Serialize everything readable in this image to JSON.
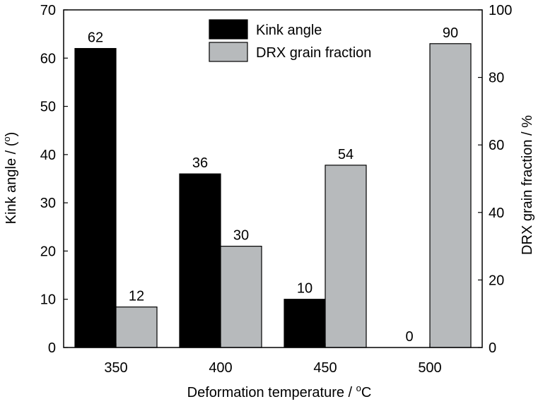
{
  "chart_data": {
    "type": "bar",
    "categories": [
      "350",
      "400",
      "450",
      "500"
    ],
    "series": [
      {
        "name": "Kink angle",
        "axis": "left",
        "color": "#000000",
        "values": [
          62,
          36,
          10,
          0
        ],
        "labels": [
          "62",
          "36",
          "10",
          "0"
        ]
      },
      {
        "name": "DRX grain fraction",
        "axis": "right",
        "color": "#b7babc",
        "values": [
          12,
          30,
          54,
          90
        ],
        "labels": [
          "12",
          "30",
          "54",
          "90"
        ]
      }
    ],
    "xlabel": "Deformation temperature / ",
    "xlabel_unit": "C",
    "xlabel_superscript": "o",
    "ylabel": "Kink angle / (",
    "ylabel_superscript": "o",
    "ylabel_suffix": ")",
    "y2label": "DRX grain fraction / %",
    "ylim": [
      0,
      70
    ],
    "y2lim": [
      0,
      100
    ],
    "yticks": [
      "0",
      "10",
      "20",
      "30",
      "40",
      "50",
      "60",
      "70"
    ],
    "y2ticks": [
      "0",
      "20",
      "40",
      "60",
      "80",
      "100"
    ],
    "legend_position": "top-center",
    "grid": false
  }
}
